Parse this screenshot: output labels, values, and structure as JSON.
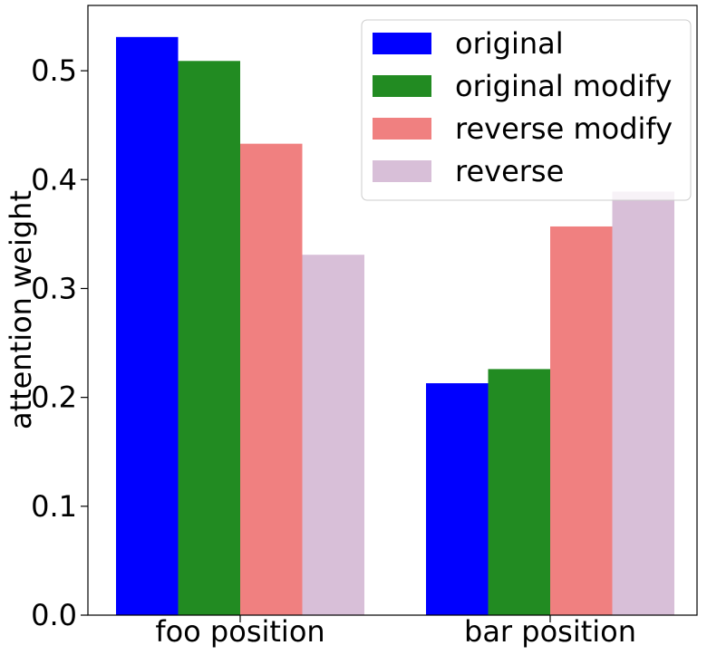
{
  "chart_data": {
    "type": "bar",
    "title": "",
    "xlabel": "",
    "ylabel": "attention weight",
    "ylim": [
      0,
      0.56
    ],
    "yticks": [
      "0.0",
      "0.1",
      "0.2",
      "0.3",
      "0.4",
      "0.5"
    ],
    "categories": [
      "foo position",
      "bar position"
    ],
    "series": [
      {
        "name": "original",
        "color": "#0000ff",
        "values": [
          0.531,
          0.213
        ]
      },
      {
        "name": "original modify",
        "color": "#228b22",
        "values": [
          0.509,
          0.226
        ]
      },
      {
        "name": "reverse modify",
        "color": "#f08080",
        "values": [
          0.433,
          0.357
        ]
      },
      {
        "name": "reverse",
        "color": "#d8bfd8",
        "values": [
          0.331,
          0.389
        ]
      }
    ],
    "grid": false,
    "legend_position": "top-right"
  }
}
